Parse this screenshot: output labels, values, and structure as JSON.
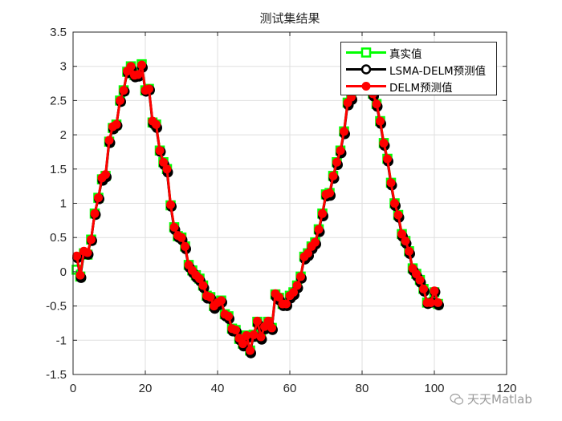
{
  "chart_data": {
    "type": "line",
    "title": "测试集结果",
    "xlabel": "",
    "ylabel": "",
    "xlim": [
      0,
      120
    ],
    "ylim": [
      -1.5,
      3.5
    ],
    "xticks": [
      0,
      20,
      40,
      60,
      80,
      100,
      120
    ],
    "yticks": [
      -1.5,
      -1,
      -0.5,
      0,
      0.5,
      1,
      1.5,
      2,
      2.5,
      3,
      3.5
    ],
    "ytick_labels": [
      "-1.5",
      "-1",
      "-0.5",
      "0",
      "0.5",
      "1",
      "1.5",
      "2",
      "2.5",
      "3",
      "3.5"
    ],
    "xtick_labels": [
      "0",
      "20",
      "40",
      "60",
      "80",
      "100",
      "120"
    ],
    "grid": true,
    "legend_position": "northeast",
    "x_start": 1,
    "series": [
      {
        "name": "真实值",
        "color": "#00ff00",
        "marker": "square",
        "values": [
          0.03,
          -0.07,
          0.27,
          0.25,
          0.47,
          0.85,
          1.08,
          1.35,
          1.4,
          1.9,
          2.1,
          2.15,
          2.5,
          2.65,
          2.92,
          3.0,
          2.87,
          2.88,
          3.03,
          2.65,
          2.67,
          2.18,
          2.15,
          1.77,
          1.6,
          1.5,
          0.97,
          0.65,
          0.52,
          0.5,
          0.37,
          0.1,
          0.02,
          -0.05,
          -0.1,
          -0.2,
          -0.35,
          -0.37,
          -0.5,
          -0.45,
          -0.42,
          -0.62,
          -0.65,
          -0.83,
          -0.85,
          -0.98,
          -1.05,
          -0.93,
          -1.15,
          -0.92,
          -0.73,
          -0.95,
          -0.8,
          -0.73,
          -0.82,
          -0.33,
          -0.38,
          -0.47,
          -0.47,
          -0.35,
          -0.3,
          -0.2,
          -0.07,
          0.22,
          0.27,
          0.37,
          0.43,
          0.62,
          0.85,
          1.13,
          1.15,
          1.4,
          1.6,
          1.77,
          2.05,
          2.47,
          2.55,
          2.7,
          2.85,
          2.95,
          2.92,
          2.8,
          2.6,
          2.45,
          2.2,
          1.88,
          1.65,
          1.3,
          1.0,
          0.83,
          0.55,
          0.45,
          0.3,
          0.05,
          -0.03,
          -0.12,
          -0.25,
          -0.45,
          -0.45,
          -0.3,
          -0.47
        ]
      },
      {
        "name": "LSMA-DELM预测值",
        "color": "#000000",
        "marker": "circle-open",
        "values": [
          0.22,
          -0.07,
          0.28,
          0.27,
          0.47,
          0.85,
          1.08,
          1.35,
          1.4,
          1.9,
          2.1,
          2.15,
          2.5,
          2.65,
          2.92,
          2.97,
          2.86,
          2.87,
          3.0,
          2.65,
          2.67,
          2.18,
          2.12,
          1.77,
          1.58,
          1.47,
          0.97,
          0.63,
          0.52,
          0.48,
          0.35,
          0.08,
          0.0,
          -0.07,
          -0.12,
          -0.22,
          -0.37,
          -0.38,
          -0.52,
          -0.47,
          -0.43,
          -0.63,
          -0.67,
          -0.85,
          -0.86,
          -0.98,
          -1.07,
          -0.95,
          -1.17,
          -0.93,
          -0.75,
          -0.97,
          -0.82,
          -0.75,
          -0.83,
          -0.35,
          -0.4,
          -0.48,
          -0.48,
          -0.37,
          -0.32,
          -0.22,
          -0.08,
          0.2,
          0.25,
          0.35,
          0.42,
          0.6,
          0.83,
          1.12,
          1.13,
          1.38,
          1.58,
          1.75,
          2.03,
          2.45,
          2.53,
          2.68,
          2.83,
          2.93,
          2.9,
          2.78,
          2.58,
          2.43,
          2.18,
          1.86,
          1.63,
          1.28,
          0.98,
          0.81,
          0.53,
          0.43,
          0.28,
          0.03,
          -0.05,
          -0.14,
          -0.27,
          -0.45,
          -0.43,
          -0.28,
          -0.47
        ]
      },
      {
        "name": "DELM预测值",
        "color": "#ff0000",
        "marker": "circle-filled",
        "values": [
          0.23,
          -0.05,
          0.3,
          0.28,
          0.47,
          0.85,
          1.08,
          1.37,
          1.42,
          1.92,
          2.12,
          2.15,
          2.5,
          2.65,
          2.93,
          3.0,
          2.87,
          2.88,
          3.02,
          2.65,
          2.67,
          2.2,
          2.15,
          1.77,
          1.6,
          1.5,
          0.98,
          0.65,
          0.53,
          0.5,
          0.37,
          0.1,
          0.02,
          -0.05,
          -0.1,
          -0.2,
          -0.35,
          -0.37,
          -0.5,
          -0.45,
          -0.42,
          -0.62,
          -0.65,
          -0.83,
          -0.85,
          -0.97,
          -1.05,
          -0.93,
          -1.15,
          -0.92,
          -0.72,
          -0.95,
          -0.8,
          -0.72,
          -0.82,
          -0.32,
          -0.37,
          -0.47,
          -0.47,
          -0.35,
          -0.3,
          -0.2,
          -0.07,
          0.22,
          0.27,
          0.37,
          0.43,
          0.62,
          0.85,
          1.13,
          1.15,
          1.4,
          1.6,
          1.77,
          2.05,
          2.47,
          2.55,
          2.7,
          2.85,
          2.95,
          2.92,
          2.8,
          2.6,
          2.45,
          2.2,
          1.88,
          1.65,
          1.3,
          1.0,
          0.83,
          0.55,
          0.45,
          0.3,
          0.05,
          -0.03,
          -0.12,
          -0.25,
          -0.45,
          -0.45,
          -0.28,
          -0.45
        ]
      }
    ]
  },
  "figure": {
    "title": "测试集结果",
    "legend": [
      {
        "label": "真实值",
        "color": "#00ff00",
        "marker": "square"
      },
      {
        "label": "LSMA-DELM预测值",
        "color": "#000000",
        "marker": "circle-open"
      },
      {
        "label": "DELM预测值",
        "color": "#ff0000",
        "marker": "circle-filled"
      }
    ],
    "watermark": "天天Matlab",
    "watermark_icon": "wechat-icon"
  }
}
